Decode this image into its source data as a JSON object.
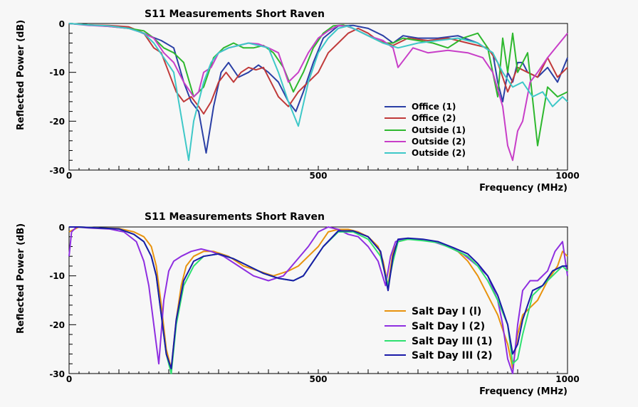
{
  "chart_data": [
    {
      "type": "line",
      "title": "S11 Measurements Short Raven",
      "xlabel": "Frequency (MHz)",
      "ylabel": "Reflected Power (dB)",
      "xlim": [
        0,
        1000
      ],
      "ylim": [
        -30,
        0
      ],
      "x_ticks": [
        "0",
        "500",
        "1000"
      ],
      "y_ticks": [
        "0",
        "-10",
        "-20",
        "-30"
      ],
      "legend_position": "bottom-right",
      "series": [
        {
          "name": "Office (1)",
          "color": "#2a3fa5",
          "x": [
            0,
            40,
            80,
            120,
            160,
            185,
            210,
            230,
            245,
            260,
            275,
            290,
            305,
            320,
            340,
            360,
            380,
            400,
            420,
            440,
            455,
            470,
            490,
            510,
            540,
            570,
            600,
            630,
            650,
            670,
            700,
            740,
            780,
            820,
            850,
            860,
            870,
            880,
            890,
            900,
            910,
            920,
            940,
            960,
            980,
            1000
          ],
          "y": [
            0,
            -0.3,
            -0.5,
            -0.8,
            -2.5,
            -3.5,
            -5,
            -12,
            -16,
            -18,
            -26.5,
            -17,
            -10,
            -8,
            -11,
            -10,
            -8.5,
            -10,
            -12,
            -16,
            -18,
            -14,
            -8,
            -3,
            -0.5,
            -0.4,
            -1,
            -2.5,
            -4,
            -2.5,
            -3,
            -3,
            -2.5,
            -4,
            -6,
            -12,
            -16,
            -10,
            -12,
            -8,
            -8,
            -10,
            -11,
            -9,
            -12,
            -7
          ]
        },
        {
          "name": "Office (2)",
          "color": "#c03a3a",
          "x": [
            0,
            40,
            80,
            120,
            150,
            170,
            185,
            200,
            215,
            230,
            245,
            260,
            270,
            285,
            300,
            315,
            330,
            345,
            360,
            375,
            390,
            405,
            420,
            440,
            460,
            480,
            500,
            520,
            540,
            560,
            580,
            600,
            620,
            650,
            680,
            720,
            760,
            800,
            840,
            860,
            880,
            900,
            920,
            940,
            960,
            980,
            1000
          ],
          "y": [
            0,
            -0.3,
            -0.4,
            -0.7,
            -2,
            -5,
            -6,
            -10,
            -14,
            -16,
            -15,
            -17,
            -18.5,
            -16,
            -12,
            -10,
            -12,
            -10,
            -9,
            -9.5,
            -9,
            -12,
            -15,
            -17,
            -14,
            -12,
            -10,
            -6,
            -4,
            -2,
            -1,
            -2,
            -3.5,
            -4.5,
            -3,
            -3.5,
            -3,
            -4,
            -5,
            -8,
            -14,
            -9,
            -10,
            -11,
            -7,
            -11,
            -9
          ]
        },
        {
          "name": "Outside (1)",
          "color": "#2eb82e",
          "x": [
            0,
            40,
            80,
            120,
            150,
            170,
            190,
            210,
            230,
            250,
            270,
            290,
            310,
            330,
            350,
            370,
            390,
            410,
            430,
            450,
            470,
            490,
            510,
            530,
            550,
            570,
            590,
            610,
            630,
            650,
            670,
            700,
            730,
            760,
            790,
            820,
            840,
            860,
            870,
            880,
            890,
            900,
            920,
            940,
            960,
            980,
            1000
          ],
          "y": [
            0,
            -0.3,
            -0.6,
            -1,
            -1.5,
            -3,
            -5,
            -6,
            -8,
            -15,
            -13,
            -7,
            -5,
            -4,
            -5,
            -5,
            -4.5,
            -6,
            -9,
            -14,
            -10,
            -5,
            -2,
            -0.5,
            -0.3,
            -1,
            -2,
            -3,
            -4,
            -4,
            -3,
            -3.5,
            -4,
            -5,
            -3,
            -2,
            -5,
            -15,
            -3,
            -10,
            -2,
            -10,
            -6,
            -25,
            -13,
            -15,
            -14
          ]
        },
        {
          "name": "Outside (2)",
          "color": "#c83ec8",
          "x": [
            0,
            40,
            80,
            120,
            150,
            170,
            190,
            210,
            230,
            250,
            260,
            270,
            285,
            300,
            320,
            340,
            360,
            380,
            400,
            420,
            440,
            460,
            480,
            500,
            520,
            540,
            560,
            580,
            600,
            630,
            650,
            660,
            690,
            720,
            760,
            800,
            830,
            850,
            870,
            880,
            890,
            900,
            910,
            925,
            940,
            960,
            980,
            1000
          ],
          "y": [
            0,
            -0.4,
            -0.6,
            -1,
            -2,
            -3,
            -6,
            -8,
            -12,
            -15,
            -14,
            -10,
            -9,
            -6,
            -5,
            -4.5,
            -4,
            -4.2,
            -5,
            -6,
            -12,
            -10,
            -6,
            -3,
            -1.5,
            -0.4,
            -0.6,
            -1.5,
            -2.5,
            -3.5,
            -5,
            -9,
            -5,
            -6,
            -5.5,
            -6,
            -7,
            -10,
            -17,
            -25,
            -28,
            -22,
            -20,
            -12,
            -10,
            -7,
            -4.5,
            -2
          ]
        },
        {
          "name": "Outside (2)",
          "color": "#3ec8c8",
          "x": [
            0,
            40,
            80,
            120,
            150,
            170,
            190,
            210,
            230,
            240,
            250,
            260,
            270,
            285,
            300,
            320,
            340,
            360,
            380,
            400,
            420,
            440,
            460,
            480,
            500,
            520,
            540,
            560,
            580,
            600,
            630,
            660,
            700,
            740,
            780,
            820,
            850,
            870,
            890,
            910,
            930,
            950,
            970,
            990,
            1000
          ],
          "y": [
            0,
            -0.3,
            -0.5,
            -1,
            -2,
            -4,
            -7,
            -10,
            -22,
            -28,
            -20,
            -16,
            -12,
            -8,
            -6,
            -5,
            -4.5,
            -4,
            -4.5,
            -5,
            -10,
            -16,
            -21,
            -12,
            -6,
            -3,
            -1,
            -0.5,
            -1.5,
            -2.5,
            -4,
            -5,
            -4,
            -3.5,
            -3,
            -4,
            -6,
            -10,
            -13,
            -12,
            -15,
            -14,
            -17,
            -15,
            -16
          ]
        }
      ]
    },
    {
      "type": "line",
      "title": "S11 Measurements Short Raven",
      "xlabel": "Frequency (MHz)",
      "ylabel": "Reflected Power (dB)",
      "xlim": [
        0,
        1000
      ],
      "ylim": [
        -30,
        0
      ],
      "x_ticks": [
        "0",
        "500",
        "1000"
      ],
      "y_ticks": [
        "0",
        "-10",
        "-20",
        "-30"
      ],
      "legend_position": "bottom-right",
      "series": [
        {
          "name": "Salt Day I (l)",
          "color": "#e8930e",
          "x": [
            0,
            20,
            60,
            100,
            130,
            150,
            165,
            175,
            185,
            195,
            205,
            215,
            225,
            235,
            250,
            270,
            290,
            320,
            350,
            380,
            410,
            440,
            460,
            480,
            500,
            520,
            540,
            560,
            580,
            600,
            620,
            630,
            640,
            650,
            660,
            680,
            700,
            720,
            740,
            760,
            780,
            800,
            820,
            840,
            860,
            880,
            890,
            900,
            910,
            920,
            940,
            960,
            980,
            990,
            1000
          ],
          "y": [
            -1,
            0,
            -0.2,
            -0.3,
            -1,
            -2,
            -4,
            -8,
            -16,
            -25,
            -29,
            -19,
            -12,
            -8,
            -6,
            -5,
            -5,
            -6,
            -8,
            -9,
            -10,
            -9,
            -8,
            -6,
            -4,
            -1,
            -0.5,
            -0.5,
            -1,
            -2,
            -4,
            -7,
            -12,
            -5,
            -3,
            -2.5,
            -2.5,
            -2.8,
            -3,
            -4,
            -5,
            -7,
            -10,
            -14,
            -18,
            -24,
            -29,
            -22,
            -18,
            -17,
            -15,
            -11,
            -8,
            -5,
            -6
          ]
        },
        {
          "name": "Salt Day I (2)",
          "color": "#8e2ee0",
          "x": [
            0,
            5,
            15,
            40,
            80,
            110,
            135,
            150,
            160,
            170,
            180,
            190,
            200,
            210,
            225,
            245,
            265,
            285,
            310,
            340,
            370,
            400,
            430,
            455,
            480,
            500,
            520,
            540,
            560,
            580,
            600,
            620,
            635,
            645,
            655,
            670,
            700,
            730,
            760,
            790,
            820,
            840,
            860,
            870,
            880,
            890,
            900,
            910,
            925,
            940,
            960,
            975,
            990,
            1000
          ],
          "y": [
            -6,
            -1,
            0,
            -0.2,
            -0.4,
            -1,
            -3,
            -7,
            -12,
            -20,
            -28,
            -15,
            -9,
            -7,
            -6,
            -5,
            -4.5,
            -5,
            -6,
            -8,
            -10,
            -11,
            -10,
            -7,
            -4,
            -1,
            0,
            -0.5,
            -1.5,
            -2,
            -4,
            -7,
            -12,
            -6,
            -3,
            -2.5,
            -2.5,
            -3,
            -4,
            -5.5,
            -8,
            -10,
            -15,
            -20,
            -27,
            -30,
            -20,
            -13,
            -11,
            -11,
            -9,
            -5,
            -3,
            -10
          ]
        },
        {
          "name": "Salt Day III (1)",
          "color": "#2ee070",
          "x": [
            0,
            20,
            60,
            100,
            130,
            150,
            165,
            175,
            185,
            195,
            205,
            215,
            230,
            250,
            270,
            300,
            330,
            360,
            390,
            420,
            450,
            470,
            490,
            510,
            540,
            570,
            600,
            625,
            640,
            650,
            660,
            680,
            710,
            740,
            770,
            800,
            820,
            840,
            860,
            880,
            890,
            900,
            910,
            930,
            950,
            970,
            990,
            1000
          ],
          "y": [
            0,
            0,
            -0.2,
            -0.4,
            -1.5,
            -3,
            -6,
            -10,
            -18,
            -26,
            -30,
            -20,
            -12,
            -8,
            -6,
            -5.5,
            -6.5,
            -8,
            -9.5,
            -10.5,
            -11,
            -10,
            -7,
            -4,
            -1,
            -1,
            -2.5,
            -6,
            -12,
            -7,
            -3,
            -2.5,
            -2.8,
            -3.2,
            -4.5,
            -6,
            -8,
            -11,
            -15,
            -20,
            -28,
            -27,
            -22,
            -14,
            -12,
            -10,
            -8,
            -9
          ]
        },
        {
          "name": "Salt Day III (2)",
          "color": "#1a1aa8",
          "x": [
            0,
            20,
            60,
            100,
            130,
            150,
            165,
            175,
            185,
            195,
            205,
            215,
            230,
            250,
            270,
            300,
            330,
            360,
            390,
            420,
            450,
            470,
            490,
            510,
            540,
            570,
            600,
            625,
            640,
            650,
            660,
            680,
            710,
            740,
            770,
            800,
            820,
            840,
            860,
            880,
            890,
            900,
            910,
            930,
            950,
            970,
            990,
            1000
          ],
          "y": [
            0,
            0,
            -0.2,
            -0.4,
            -1.5,
            -3,
            -6,
            -10,
            -18,
            -26,
            -29,
            -19,
            -11,
            -7,
            -6,
            -5.5,
            -6.5,
            -8,
            -9.5,
            -10.5,
            -11,
            -10,
            -7,
            -4,
            -0.8,
            -0.8,
            -2,
            -5,
            -13,
            -6,
            -2.5,
            -2.3,
            -2.5,
            -3,
            -4.2,
            -5.5,
            -7.5,
            -10,
            -14,
            -20,
            -26,
            -24,
            -19,
            -13,
            -12,
            -9,
            -8,
            -8
          ]
        }
      ]
    }
  ]
}
